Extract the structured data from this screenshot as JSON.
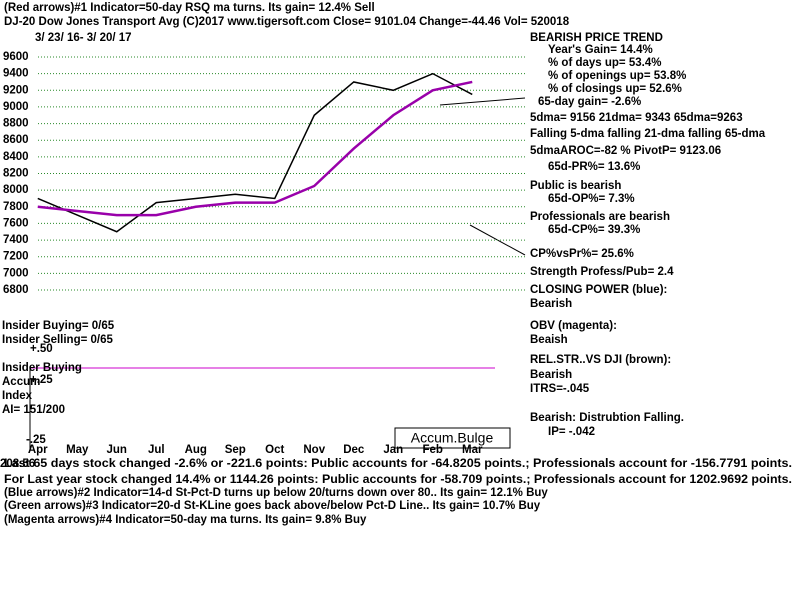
{
  "chart_data": {
    "type": "line",
    "header": "(Red arrows)#1 Indicator=50-day RSQ ma turns.  Its gain= 12.4% Sell",
    "title": "DJ-20   Dow Jones Transport Avg  (C)2017 www.tigersoft.com      Close=  9101.04  Change=-44.46  Vol= 520018",
    "subtitle": "3/ 23/ 16-  3/ 20/ 17",
    "categories": [
      "Apr",
      "May",
      "Jun",
      "Jul",
      "Aug",
      "Sep",
      "Oct",
      "Nov",
      "Dec",
      "Jan",
      "Feb",
      "Mar"
    ],
    "series": [
      {
        "color": "#000000",
        "values": [
          7900,
          7700,
          7500,
          7850,
          7900,
          7950,
          7900,
          8900,
          9300,
          9200,
          9400,
          9150
        ]
      },
      {
        "color": "#9900aa",
        "values": [
          7800,
          7750,
          7700,
          7700,
          7800,
          7850,
          7850,
          8050,
          8500,
          8900,
          9200,
          9300
        ]
      }
    ],
    "ylim": [
      6800,
      9600
    ],
    "yticks": [
      6800,
      7000,
      7200,
      7400,
      7600,
      7800,
      8000,
      8200,
      8400,
      8600,
      8800,
      9000,
      9200,
      9400,
      9600
    ],
    "grid": true,
    "right_panel": [
      "BEARISH PRICE TREND",
      "Year's Gain= 14.4%",
      "% of days up= 53.4%",
      "% of openings up= 53.8%",
      "% of closings up= 52.6%",
      "65-day gain= -2.6%",
      "5dma= 9156 21dma= 9343 65dma=9263",
      "Falling 5-dma falling 21-dma falling 65-dma",
      "5dmaAROC=-82 %  PivotP= 9123.06",
      "65d-PR%= 13.6%",
      "Public is bearish",
      "65d-OP%= 7.3%",
      "Professionals are bearish",
      "65d-CP%= 39.3%",
      "CP%vsPr%=  25.6%",
      "Strength Profess/Pub= 2.4",
      "CLOSING POWER (blue):",
      "Bearish",
      "OBV (magenta):",
      "Beaish",
      "REL.STR..VS DJI (brown):",
      "Bearish",
      "ITRS=-.045",
      "Bearish: Distrubtion Falling.",
      "IP= -.042"
    ],
    "left_labels": [
      "Insider Buying= 0/65",
      "Insider Selling= 0/65",
      "+.50",
      "Insider Buying",
      "Accum",
      "+.25",
      "Index",
      "AI= 151/200",
      "-.25"
    ],
    "annotation": "Accum.Bulge",
    "footer": [
      "208.56",
      "Last 65 days stock changed -2.6% or -221.6 points:  Public accounts for -64.8205 points.;  Professionals account for -156.7791 points.",
      "For Last year stock changed  14.4% or  1144.26 points:  Public accounts for -58.709 points.;  Professionals account for  1202.9692 points.",
      "(Blue arrows)#2 Indicator=14-d St-Pct-D turns up below 20/turns down over 80.. Its gain= 12.1% Buy",
      "(Green arrows)#3 Indicator=20-d St-KLine goes back above/below Pct-D Line.. Its gain= 10.7% Buy",
      "(Magenta arrows)#4 Indicator=50-day ma turns.  Its gain= 9.8% Buy"
    ]
  }
}
